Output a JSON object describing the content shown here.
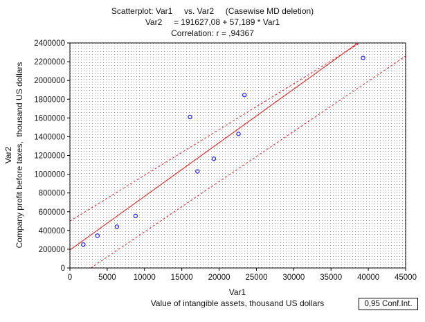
{
  "chart_data": {
    "type": "scatter",
    "title_lines": [
      "Scatterplot: Var1     vs. Var2     (Casewise MD deletion)",
      "Var2     = 191627,08 + 57,189 * Var1",
      "Correlation: r = ,94367"
    ],
    "xlabel_lines": [
      "Var1",
      "Value of intangible assets, thousand US dollars"
    ],
    "ylabel_lines": [
      "Var2",
      "Company profit before taxes,  thousand US dollars"
    ],
    "xlim": [
      0,
      45000
    ],
    "ylim": [
      0,
      2400000
    ],
    "x_ticks": [
      0,
      5000,
      10000,
      15000,
      20000,
      25000,
      30000,
      35000,
      40000,
      45000
    ],
    "x_tick_labels": [
      "0",
      "5000",
      "10000",
      "15000",
      "20000",
      "25000",
      "30000",
      "35000",
      "40000",
      "45000"
    ],
    "y_ticks": [
      0,
      200000,
      400000,
      600000,
      800000,
      1000000,
      1200000,
      1400000,
      1600000,
      1800000,
      2000000,
      2200000,
      2400000
    ],
    "y_tick_labels": [
      "0",
      "200000",
      "400000",
      "600000",
      "800000",
      "1000000",
      "1200000",
      "1400000",
      "1600000",
      "1800000",
      "2000000",
      "2200000",
      "2400000"
    ],
    "points": [
      {
        "x": 1800,
        "y": 250000
      },
      {
        "x": 3700,
        "y": 345000
      },
      {
        "x": 6300,
        "y": 440000
      },
      {
        "x": 8800,
        "y": 555000
      },
      {
        "x": 16100,
        "y": 1610000
      },
      {
        "x": 17100,
        "y": 1030000
      },
      {
        "x": 19300,
        "y": 1165000
      },
      {
        "x": 22600,
        "y": 1430000
      },
      {
        "x": 23400,
        "y": 1845000
      },
      {
        "x": 39300,
        "y": 2240000
      }
    ],
    "regression": {
      "intercept": 191627.08,
      "slope": 57.189
    },
    "confidence_band": {
      "upper": [
        {
          "x": 0,
          "y": 500000
        },
        {
          "x": 42000,
          "y": 2550000
        }
      ],
      "lower": [
        {
          "x": 2800,
          "y": 0
        },
        {
          "x": 45000,
          "y": 2260000
        }
      ]
    },
    "legend_text": "0,95 Conf.Int.",
    "grid": "dense dotted",
    "colors": {
      "points": "#1a1aff",
      "regression": "#e02020",
      "band": "#e02020",
      "grid": "#8a8a8a"
    }
  }
}
